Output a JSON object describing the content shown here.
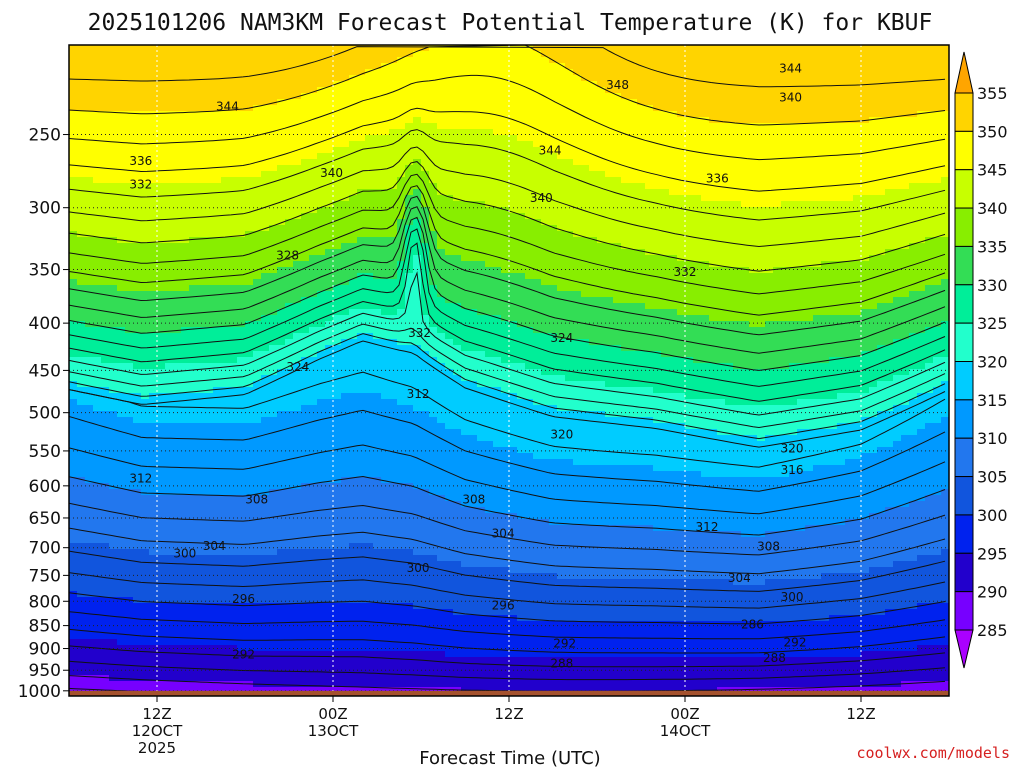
{
  "chart_data": {
    "type": "heatmap",
    "title": "2025101206 NAM3KM Forecast Potential Temperature (K) for KBUF",
    "xlabel": "Forecast Time (UTC)",
    "ylabel": "",
    "x_ticks": [
      {
        "line1": "12Z",
        "line2": "12OCT",
        "line3": "2025",
        "hour": 6
      },
      {
        "line1": "00Z",
        "line2": "13OCT",
        "line3": "",
        "hour": 18
      },
      {
        "line1": "12Z",
        "line2": "",
        "line3": "",
        "hour": 30
      },
      {
        "line1": "00Z",
        "line2": "14OCT",
        "line3": "",
        "hour": 42
      },
      {
        "line1": "12Z",
        "line2": "",
        "line3": "",
        "hour": 54
      }
    ],
    "xlim": [
      0,
      60
    ],
    "y_ticks": [
      250,
      300,
      350,
      400,
      450,
      500,
      550,
      600,
      650,
      700,
      750,
      800,
      850,
      900,
      950,
      1000
    ],
    "ylim": [
      1013,
      200
    ],
    "y_scale": "log",
    "grid": true,
    "ground_pressure": 1000,
    "colorbar": {
      "labels": [
        "355",
        "350",
        "345",
        "340",
        "335",
        "330",
        "325",
        "320",
        "315",
        "310",
        "305",
        "300",
        "295",
        "290",
        "285"
      ],
      "levels": [
        355,
        350,
        345,
        340,
        335,
        330,
        325,
        320,
        315,
        310,
        305,
        300,
        295,
        290,
        285
      ],
      "colors": [
        "#ffa500",
        "#ffd400",
        "#ffff00",
        "#c8ff00",
        "#88ee00",
        "#33dd55",
        "#00ee99",
        "#22ffcc",
        "#00ccff",
        "#0099ff",
        "#2277ee",
        "#1155dd",
        "#0022ee",
        "#2200cc",
        "#7700ff",
        "#aa00ff"
      ]
    },
    "contour_labels": [
      {
        "text": "344",
        "hour": 10.8,
        "p": 233
      },
      {
        "text": "336",
        "hour": 4.9,
        "p": 267
      },
      {
        "text": "332",
        "hour": 4.9,
        "p": 283
      },
      {
        "text": "340",
        "hour": 17.9,
        "p": 275
      },
      {
        "text": "344",
        "hour": 32.8,
        "p": 260
      },
      {
        "text": "348",
        "hour": 37.4,
        "p": 221
      },
      {
        "text": "344",
        "hour": 49.2,
        "p": 212
      },
      {
        "text": "340",
        "hour": 49.2,
        "p": 228
      },
      {
        "text": "336",
        "hour": 44.2,
        "p": 279
      },
      {
        "text": "340",
        "hour": 32.2,
        "p": 293
      },
      {
        "text": "332",
        "hour": 42.0,
        "p": 352
      },
      {
        "text": "328",
        "hour": 14.9,
        "p": 338
      },
      {
        "text": "332",
        "hour": 23.9,
        "p": 410
      },
      {
        "text": "324",
        "hour": 33.6,
        "p": 415
      },
      {
        "text": "324",
        "hour": 15.6,
        "p": 446
      },
      {
        "text": "312",
        "hour": 23.8,
        "p": 477
      },
      {
        "text": "320",
        "hour": 33.6,
        "p": 528
      },
      {
        "text": "320",
        "hour": 49.3,
        "p": 547
      },
      {
        "text": "316",
        "hour": 49.3,
        "p": 577
      },
      {
        "text": "312",
        "hour": 4.9,
        "p": 589
      },
      {
        "text": "308",
        "hour": 12.8,
        "p": 621
      },
      {
        "text": "308",
        "hour": 27.6,
        "p": 621
      },
      {
        "text": "304",
        "hour": 29.6,
        "p": 676
      },
      {
        "text": "312",
        "hour": 43.5,
        "p": 665
      },
      {
        "text": "304",
        "hour": 9.9,
        "p": 697
      },
      {
        "text": "300",
        "hour": 7.9,
        "p": 710
      },
      {
        "text": "308",
        "hour": 47.7,
        "p": 698
      },
      {
        "text": "300",
        "hour": 23.8,
        "p": 736
      },
      {
        "text": "304",
        "hour": 45.7,
        "p": 755
      },
      {
        "text": "296",
        "hour": 11.9,
        "p": 795
      },
      {
        "text": "296",
        "hour": 29.6,
        "p": 808
      },
      {
        "text": "300",
        "hour": 49.3,
        "p": 792
      },
      {
        "text": "286",
        "hour": 46.6,
        "p": 848
      },
      {
        "text": "292",
        "hour": 33.8,
        "p": 889
      },
      {
        "text": "292",
        "hour": 49.5,
        "p": 887
      },
      {
        "text": "292",
        "hour": 11.9,
        "p": 913
      },
      {
        "text": "288",
        "hour": 33.6,
        "p": 934
      },
      {
        "text": "288",
        "hour": 48.1,
        "p": 922
      }
    ]
  },
  "footer": {
    "credit": "coolwx.com/models"
  }
}
